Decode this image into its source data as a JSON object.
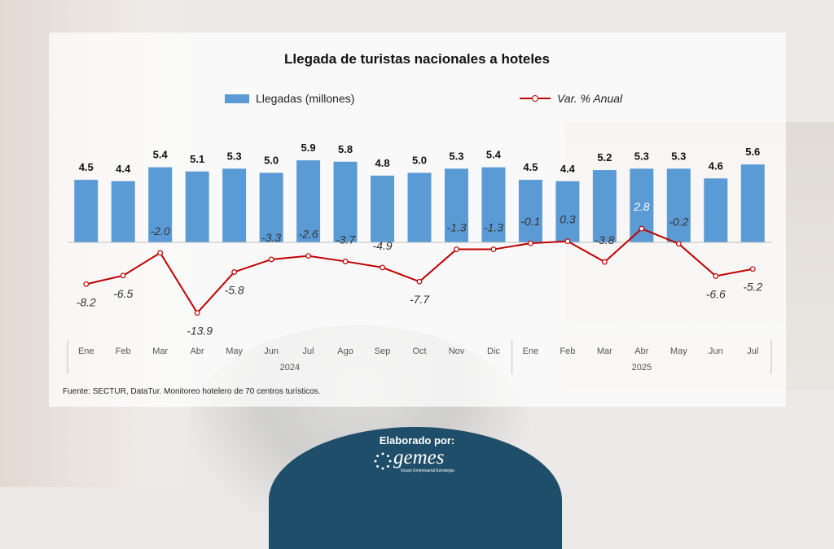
{
  "chart_data": {
    "type": "bar",
    "title": "Llegada de turistas nacionales a hoteles",
    "categories": [
      "Ene",
      "Feb",
      "Mar",
      "Abr",
      "May",
      "Jun",
      "Jul",
      "Ago",
      "Sep",
      "Oct",
      "Nov",
      "Dic",
      "Ene",
      "Feb",
      "Mar",
      "Abr",
      "May",
      "Jun",
      "Jul"
    ],
    "year_groups": [
      {
        "label": "2024",
        "count": 12
      },
      {
        "label": "2025",
        "count": 7
      }
    ],
    "series": [
      {
        "name": "Llegadas (millones)",
        "type": "bar",
        "color": "#5b9bd5",
        "values": [
          4.5,
          4.4,
          5.4,
          5.1,
          5.3,
          5.0,
          5.9,
          5.8,
          4.8,
          5.0,
          5.3,
          5.4,
          4.5,
          4.4,
          5.2,
          5.3,
          5.3,
          4.6,
          5.6
        ]
      },
      {
        "name": "Var. % Anual",
        "type": "line",
        "color": "#c00000",
        "values": [
          -8.2,
          -6.5,
          -2.0,
          -13.9,
          -5.8,
          -3.3,
          -2.6,
          -3.7,
          -4.9,
          -7.7,
          -1.3,
          -1.3,
          -0.1,
          0.3,
          -3.8,
          2.8,
          -0.2,
          -6.6,
          -5.2
        ],
        "labels": [
          "-8.2",
          "-6.5",
          "-2.0",
          "-13.9",
          "-5.8",
          "-3.3",
          "-2.6",
          "-3.7",
          "-4.9",
          "-7.7",
          "-1.3",
          "-1.3",
          "-0.1",
          "0.3",
          "-3.8",
          "2.8",
          "-0.2",
          "-6.6",
          "-5.2"
        ]
      }
    ],
    "bar_labels": [
      "4.5",
      "4.4",
      "5.4",
      "5.1",
      "5.3",
      "5.0",
      "5.9",
      "5.8",
      "4.8",
      "5.0",
      "5.3",
      "5.4",
      "4.5",
      "4.4",
      "5.2",
      "5.3",
      "5.3",
      "4.6",
      "5.6"
    ],
    "legend": "top-center",
    "grid": false
  },
  "source": "Fuente: SECTUR, DataTur. Monitoreo hotelero de 70 centros turísticos.",
  "footer": {
    "made_by": "Elaborado por:",
    "logo_text": "gemes",
    "logo_subtitle": "Grupo Empresarial Estrategia"
  }
}
